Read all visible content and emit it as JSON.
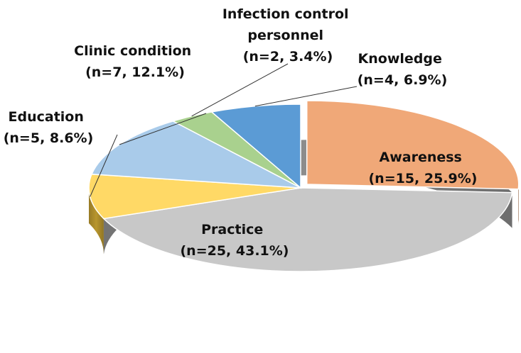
{
  "chart_data": {
    "type": "pie",
    "slices": [
      {
        "name": "Awareness",
        "label_line1": "Awareness",
        "label_line2": "(n=15, 25.9%)",
        "n": 15,
        "percent": 25.9,
        "color": "#F0A878",
        "side_color": "#9A5A34",
        "exploded": true
      },
      {
        "name": "Practice",
        "label_line1": "Practice",
        "label_line2": "(n=25, 43.1%)",
        "n": 25,
        "percent": 43.1,
        "color": "#C8C8C8",
        "side_color": "#8C8C8C",
        "exploded": false
      },
      {
        "name": "Education",
        "label_line1": "Education",
        "label_line2": "(n=5, 8.6%)",
        "n": 5,
        "percent": 8.6,
        "color": "#FFD966",
        "side_color": "#B8962E",
        "exploded": false
      },
      {
        "name": "Clinic condition",
        "label_line1": "Clinic condition",
        "label_line2": "(n=7, 12.1%)",
        "n": 7,
        "percent": 12.1,
        "color": "#A9CBEA",
        "side_color": "#6E92B4",
        "exploded": false
      },
      {
        "name": "Infection control personnel",
        "label_line1": "Infection control",
        "label_line2": "personnel",
        "label_line3": "(n=2, 3.4%)",
        "n": 2,
        "percent": 3.4,
        "color": "#A9D18E",
        "side_color": "#6E9550",
        "exploded": false
      },
      {
        "name": "Knowledge",
        "label_line1": "Knowledge",
        "label_line2": "(n=4, 6.9%)",
        "n": 4,
        "percent": 6.9,
        "color": "#5B9BD5",
        "side_color": "#2F6496",
        "exploded": false
      }
    ]
  }
}
